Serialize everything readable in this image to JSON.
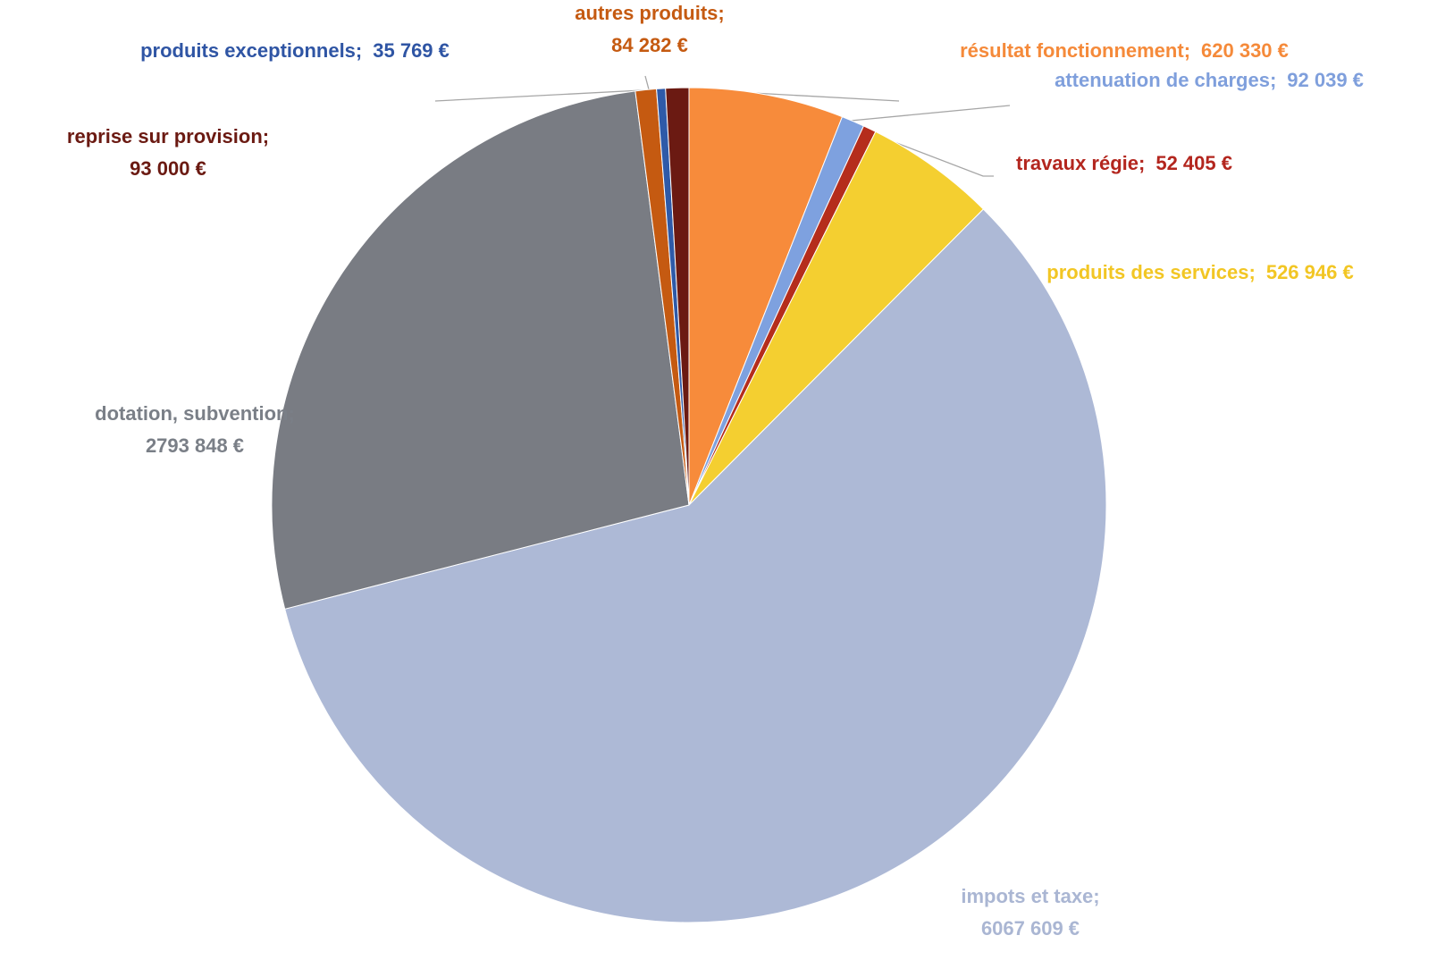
{
  "chart_data": {
    "type": "pie",
    "categories": [
      "résultat fonctionnement",
      "attenuation de charges",
      "travaux régie",
      "produits des services",
      "impots et taxe",
      "dotation, subvention",
      "autres produits",
      "produits exceptionnels",
      "reprise sur provision"
    ],
    "values": [
      620330,
      92039,
      52405,
      526946,
      6067609,
      2793848,
      84282,
      35769,
      93000
    ],
    "value_labels": [
      "620 330 €",
      "92 039 €",
      "52 405 €",
      "526 946 €",
      "6067 609 €",
      "2793 848 €",
      "84 282 €",
      "35 769 €",
      "93 000 €"
    ],
    "label_separator": ";",
    "colors": [
      "#f78b3b",
      "#7ea1df",
      "#b52d1c",
      "#f4cf30",
      "#adb9d6",
      "#797c83",
      "#c55a11",
      "#2e5aa8",
      "#6b1a12"
    ],
    "label_colors": [
      "#f58a3a",
      "#7f9fdc",
      "#b3261e",
      "#f2c624",
      "#aab6d3",
      "#7a7f87",
      "#c55a11",
      "#2f55a4",
      "#6b1a12"
    ]
  }
}
